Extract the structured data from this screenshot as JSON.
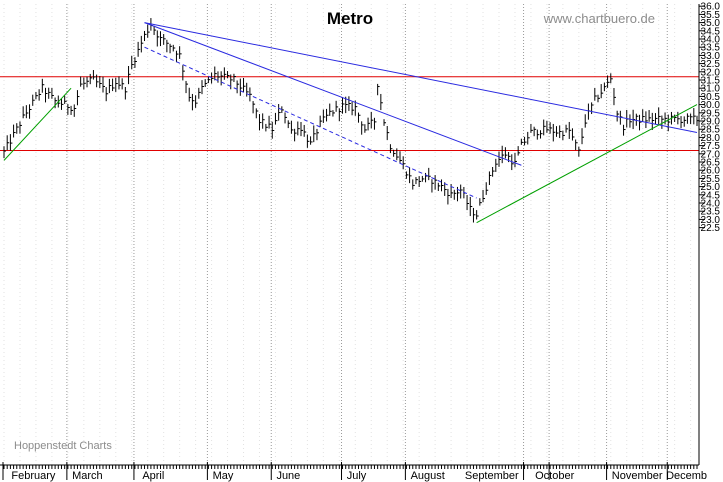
{
  "chart_data": {
    "type": "ohlc",
    "title": "Metro",
    "source_label": "www.chartbuero.de",
    "credit_label": "Hoppenstedt Charts",
    "xlabel": "",
    "ylabel": "",
    "ylim": [
      22.0,
      36.0
    ],
    "y_ticks": [
      "22.5",
      "23.0",
      "23.5",
      "24.0",
      "24.5",
      "25.0",
      "25.5",
      "26.0",
      "26.5",
      "27.0",
      "27.5",
      "28.0",
      "28.5",
      "29.0",
      "29.5",
      "30.0",
      "30.5",
      "31.0",
      "31.5",
      "32.0",
      "32.5",
      "33.0",
      "33.5",
      "34.0",
      "34.5",
      "35.0",
      "35.5",
      "36.0"
    ],
    "x_months": [
      "February",
      "March",
      "April",
      "May",
      "June",
      "July",
      "August",
      "September",
      "October",
      "November",
      "Decemb"
    ],
    "grid": "vertical dotted lines",
    "bar_count": 218,
    "price_path": [
      [
        0,
        27.1
      ],
      [
        6,
        29.2
      ],
      [
        12,
        31.0
      ],
      [
        16,
        30.2
      ],
      [
        22,
        29.8
      ],
      [
        24,
        31.2
      ],
      [
        28,
        31.5
      ],
      [
        32,
        30.8
      ],
      [
        35,
        31.4
      ],
      [
        38,
        31.0
      ],
      [
        40,
        32.4
      ],
      [
        44,
        34.2
      ],
      [
        46,
        34.9
      ],
      [
        49,
        34.0
      ],
      [
        53,
        33.5
      ],
      [
        55,
        33.0
      ],
      [
        58,
        30.5
      ],
      [
        60,
        30.2
      ],
      [
        62,
        31.0
      ],
      [
        66,
        31.8
      ],
      [
        72,
        31.5
      ],
      [
        77,
        30.5
      ],
      [
        80,
        29.0
      ],
      [
        84,
        28.5
      ],
      [
        87,
        29.8
      ],
      [
        90,
        28.4
      ],
      [
        93,
        28.6
      ],
      [
        96,
        27.6
      ],
      [
        99,
        28.8
      ],
      [
        102,
        29.5
      ],
      [
        106,
        29.9
      ],
      [
        110,
        29.8
      ],
      [
        113,
        28.5
      ],
      [
        116,
        29.0
      ],
      [
        117,
        31.3
      ],
      [
        119,
        29.0
      ],
      [
        121,
        27.5
      ],
      [
        125,
        26.3
      ],
      [
        128,
        25.2
      ],
      [
        131,
        25.5
      ],
      [
        134,
        25.4
      ],
      [
        137,
        25.0
      ],
      [
        140,
        24.5
      ],
      [
        143,
        24.8
      ],
      [
        146,
        23.6
      ],
      [
        148,
        23.3
      ],
      [
        151,
        25.0
      ],
      [
        154,
        26.5
      ],
      [
        157,
        27.0
      ],
      [
        160,
        26.4
      ],
      [
        162,
        27.5
      ],
      [
        165,
        28.3
      ],
      [
        170,
        28.5
      ],
      [
        174,
        28.3
      ],
      [
        177,
        28.4
      ],
      [
        180,
        27.1
      ],
      [
        182,
        29.0
      ],
      [
        185,
        30.3
      ],
      [
        188,
        31.0
      ],
      [
        190,
        31.6
      ],
      [
        192,
        29.5
      ],
      [
        194,
        28.7
      ],
      [
        196,
        29.1
      ]
    ],
    "resistance_lines": [
      31.7,
      27.2
    ],
    "trend_lines": [
      {
        "color": "blue",
        "style": "solid",
        "points": [
          [
            44,
            35.0
          ],
          [
            217,
            28.3
          ]
        ]
      },
      {
        "color": "blue",
        "style": "solid",
        "points": [
          [
            44,
            35.0
          ],
          [
            162,
            26.3
          ]
        ]
      },
      {
        "color": "blue",
        "style": "dashed",
        "points": [
          [
            44,
            33.5
          ],
          [
            148,
            24.3
          ]
        ]
      },
      {
        "color": "green",
        "style": "solid",
        "points": [
          [
            0,
            26.6
          ],
          [
            21,
            31.0
          ]
        ]
      },
      {
        "color": "green",
        "style": "solid",
        "points": [
          [
            148,
            22.8
          ],
          [
            217,
            30.0
          ]
        ]
      }
    ]
  }
}
